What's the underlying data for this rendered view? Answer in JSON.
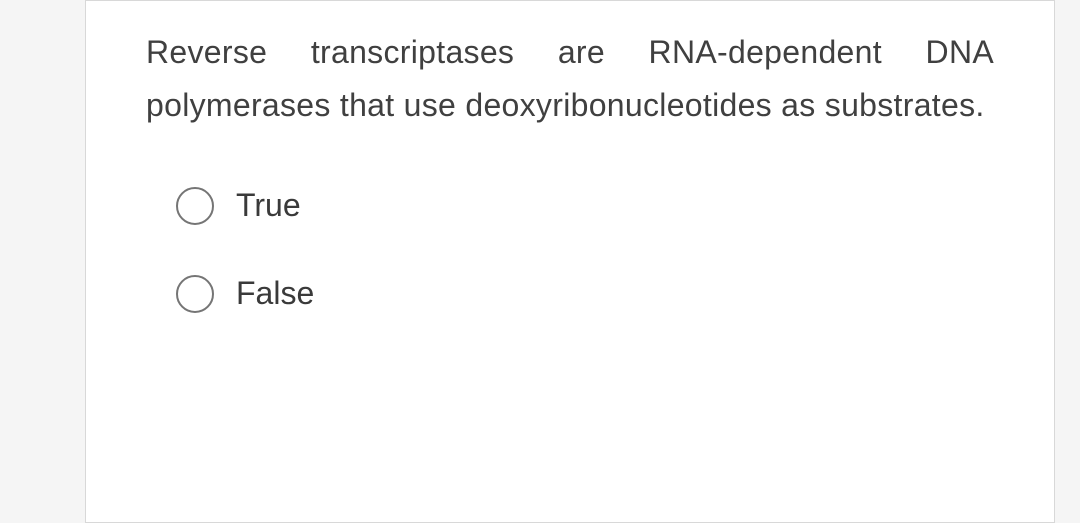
{
  "question": {
    "text": "Reverse transcriptases are RNA-dependent DNA polymerases that use deoxyribonucleotides as substrates.",
    "type": "true_false",
    "options": [
      {
        "label": "True",
        "value": "true",
        "selected": false
      },
      {
        "label": "False",
        "value": "false",
        "selected": false
      }
    ]
  },
  "styling": {
    "card_background": "#ffffff",
    "page_background": "#f5f5f5",
    "card_border_color": "#d8d8d8",
    "text_color": "#404040",
    "radio_border_color": "#757575",
    "question_fontsize": 32,
    "option_fontsize": 32,
    "line_height": 1.65
  }
}
